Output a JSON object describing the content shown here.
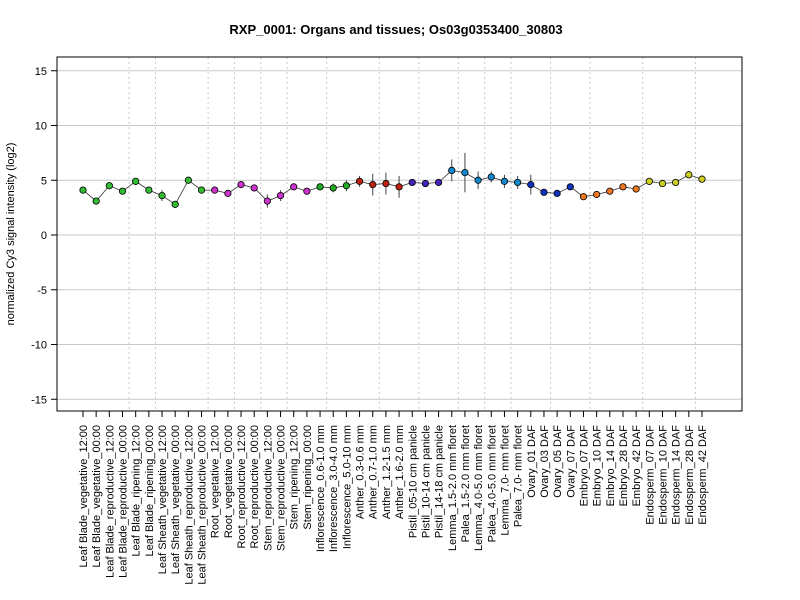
{
  "chart_data": {
    "type": "line",
    "title": "RXP_0001: Organs and tissues; Os03g0353400_30803",
    "ylabel": "normalized Cy3 signal intensity (log2)",
    "xlabel": "",
    "ylim": [
      -16,
      16
    ],
    "yticks": [
      -15,
      -10,
      -5,
      0,
      5,
      10,
      15
    ],
    "grid": "horizontal at y ticks; vertical dotted lines between tissue groups",
    "group_separators_after_index": [
      3,
      5,
      9,
      11,
      13,
      15,
      18,
      22,
      25,
      28,
      30,
      32,
      35,
      38,
      42,
      46
    ],
    "categories": [
      "Leaf Blade_vegetative_12:00",
      "Leaf Blade_vegetative_00:00",
      "Leaf Blade_reproductive_12:00",
      "Leaf Blade_reproductive_00:00",
      "Leaf Blade_ripening_12:00",
      "Leaf Blade_ripening_00:00",
      "Leaf Sheath_vegetative_12:00",
      "Leaf Sheath_vegetative_00:00",
      "Leaf Sheath_reproductive_12:00",
      "Leaf Sheath_reproductive_00:00",
      "Root_vegetative_12:00",
      "Root_vegetative_00:00",
      "Root_reproductive_12:00",
      "Root_reproductive_00:00",
      "Stem_reproductive_12:00",
      "Stem_reproductive_00:00",
      "Stem_ripening_12:00",
      "Stem_ripening_00:00",
      "Inflorescence_0.6-1.0 mm",
      "Inflorescence_3.0-4.0 mm",
      "Inflorescence_5.0-10 mm",
      "Anther_0.3-0.6 mm",
      "Anther_0.7-1.0 mm",
      "Anther_1.2-1.5 mm",
      "Anther_1.6-2.0 mm",
      "Pistil_05-10 cm panicle",
      "Pistil_10-14 cm panicle",
      "Pistil_14-18 cm panicle",
      "Lemma_1.5-2.0 mm floret",
      "Palea_1.5-2.0 mm floret",
      "Lemma_4.0-5.0 mm floret",
      "Palea_4.0-5.0 mm floret",
      "Lemma_7.0- mm floret",
      "Palea_7.0- mm floret",
      "Ovary_01 DAF",
      "Ovary_03 DAF",
      "Ovary_05 DAF",
      "Ovary_07 DAF",
      "Embryo_07 DAF",
      "Embryo_10 DAF",
      "Embryo_14 DAF",
      "Embryo_28 DAF",
      "Embryo_42 DAF",
      "Endosperm_07 DAF",
      "Endosperm_10 DAF",
      "Endosperm_14 DAF",
      "Endosperm_28 DAF",
      "Endosperm_42 DAF"
    ],
    "values": [
      4.1,
      3.1,
      4.5,
      4.0,
      4.9,
      4.1,
      3.6,
      2.8,
      5.0,
      4.1,
      4.1,
      3.8,
      4.6,
      4.3,
      3.1,
      3.6,
      4.4,
      4.0,
      4.4,
      4.3,
      4.5,
      4.9,
      4.6,
      4.7,
      4.4,
      4.8,
      4.7,
      4.8,
      5.9,
      5.7,
      5.0,
      5.3,
      4.9,
      4.8,
      4.6,
      3.9,
      3.8,
      4.4,
      3.5,
      3.7,
      4.0,
      4.4,
      4.2,
      4.9,
      4.7,
      4.8,
      5.5,
      5.1
    ],
    "errors": [
      0,
      0,
      0,
      0,
      0,
      0,
      0.5,
      0,
      0,
      0,
      0,
      0,
      0,
      0,
      0.6,
      0.5,
      0,
      0,
      0,
      0.4,
      0.5,
      0.5,
      1.0,
      1.0,
      1.0,
      0,
      0,
      0,
      1.0,
      1.8,
      0.8,
      0.5,
      0.6,
      0.6,
      0.9,
      0.3,
      0.3,
      0,
      0,
      0,
      0,
      0,
      0,
      0,
      0,
      0,
      0,
      0
    ],
    "point_colors": [
      "#33bb33",
      "#33bb33",
      "#33bb33",
      "#33bb33",
      "#33bb33",
      "#33bb33",
      "#33bb33",
      "#33bb33",
      "#33bb33",
      "#33bb33",
      "#cc33cc",
      "#cc33cc",
      "#cc33cc",
      "#cc33cc",
      "#cc33cc",
      "#cc33cc",
      "#cc33cc",
      "#cc33cc",
      "#22aa22",
      "#22aa22",
      "#22aa22",
      "#bb2211",
      "#bb2211",
      "#bb2211",
      "#bb2211",
      "#4422bb",
      "#4422bb",
      "#4422bb",
      "#1188cc",
      "#1188cc",
      "#1188cc",
      "#1188cc",
      "#1188cc",
      "#1188cc",
      "#1133bb",
      "#1133bb",
      "#1133bb",
      "#1133bb",
      "#ee7722",
      "#ee7722",
      "#ee7722",
      "#ee7722",
      "#ee7722",
      "#cccc22",
      "#cccc22",
      "#cccc22",
      "#cccc22",
      "#cccc22"
    ]
  }
}
